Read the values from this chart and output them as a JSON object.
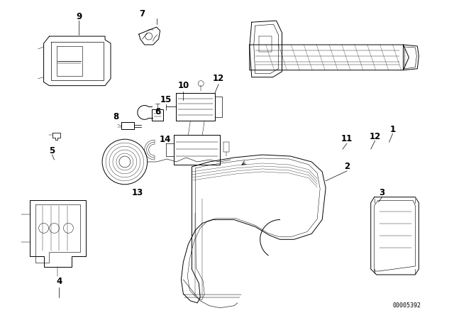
{
  "bg_color": "#ffffff",
  "line_color": "#000000",
  "diagram_id": "00005392"
}
